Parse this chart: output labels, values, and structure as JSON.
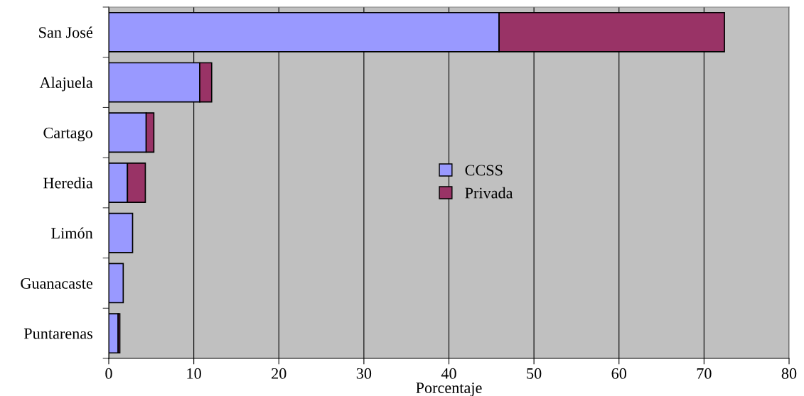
{
  "chart_data": {
    "type": "bar",
    "orientation": "horizontal",
    "stacked": true,
    "xlabel": "Porcentaje",
    "categories": [
      "San José",
      "Alajuela",
      "Cartago",
      "Heredia",
      "Limón",
      "Guanacaste",
      "Puntarenas"
    ],
    "series": [
      {
        "name": "CCSS",
        "color": "#9999ff",
        "values": [
          45.9,
          10.7,
          4.4,
          2.2,
          2.8,
          1.7,
          1.1
        ]
      },
      {
        "name": "Privada",
        "color": "#993366",
        "values": [
          26.5,
          1.4,
          0.9,
          2.1,
          0,
          0,
          0.2
        ]
      }
    ],
    "xlim": [
      0,
      80
    ],
    "xticks": [
      0,
      10,
      20,
      30,
      40,
      50,
      60,
      70,
      80
    ],
    "grid": "x",
    "legend": "center"
  }
}
